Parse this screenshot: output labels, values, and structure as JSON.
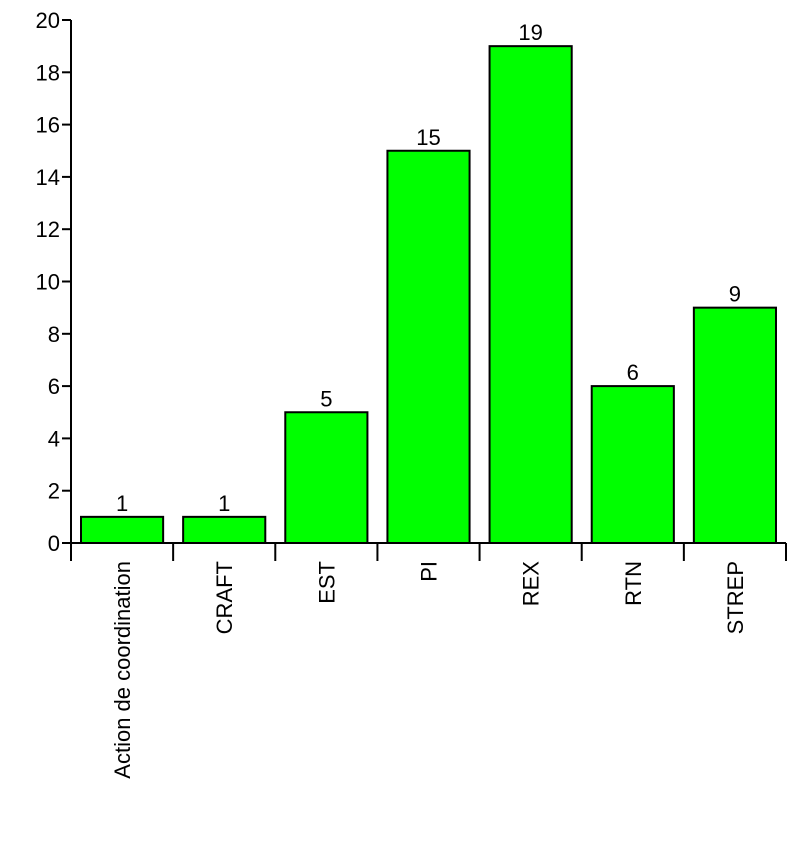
{
  "chart_data": {
    "type": "bar",
    "title": "",
    "xlabel": "",
    "ylabel": "",
    "categories": [
      "Action de coordination",
      "CRAFT",
      "EST",
      "PI",
      "REX",
      "RTN",
      "STREP"
    ],
    "values": [
      1,
      1,
      5,
      15,
      19,
      6,
      9
    ],
    "data_labels": [
      "1",
      "1",
      "5",
      "15",
      "19",
      "6",
      "9"
    ],
    "ylim": [
      0,
      20
    ],
    "yticks": [
      0,
      2,
      4,
      6,
      8,
      10,
      12,
      14,
      16,
      18,
      20
    ],
    "ytick_labels": [
      "0",
      "2",
      "4",
      "6",
      "8",
      "10",
      "12",
      "14",
      "16",
      "18",
      "20"
    ],
    "grid": false,
    "legend": "none",
    "colors": {
      "bar_fill": "#00ff00",
      "bar_stroke": "#000000",
      "axis": "#000000",
      "background": "#ffffff"
    }
  }
}
